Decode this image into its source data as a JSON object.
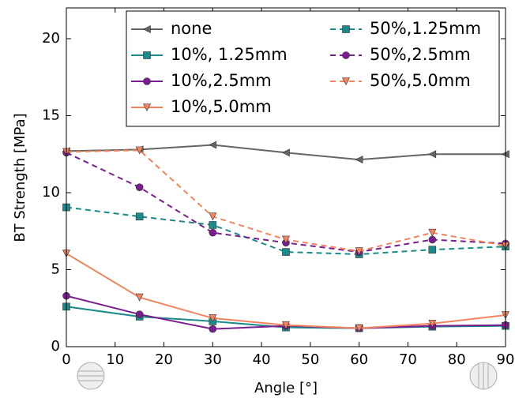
{
  "chart_data": {
    "type": "line",
    "x_label": "Angle [°]",
    "y_label": "BT Strength [MPa]",
    "x": [
      0,
      15,
      30,
      45,
      60,
      75,
      90
    ],
    "xlim": [
      0,
      90
    ],
    "xticks": [
      0,
      10,
      20,
      30,
      40,
      50,
      60,
      70,
      80,
      90
    ],
    "ylim": [
      0,
      22
    ],
    "yticks": [
      0,
      5,
      10,
      15,
      20
    ],
    "legend": "upper center",
    "series": [
      {
        "name": "none",
        "color": "#666666",
        "linestyle": "solid",
        "marker": "triangle-left",
        "values": [
          12.7,
          12.8,
          13.1,
          12.6,
          12.15,
          12.5,
          12.5
        ]
      },
      {
        "name": "10%, 1.25mm",
        "color": "#1a8a8a",
        "linestyle": "solid",
        "marker": "square",
        "values": [
          2.6,
          1.95,
          1.65,
          1.25,
          1.2,
          1.3,
          1.35
        ]
      },
      {
        "name": "10%,2.5mm",
        "color": "#7b1d8f",
        "linestyle": "solid",
        "marker": "circle",
        "values": [
          3.3,
          2.1,
          1.15,
          1.35,
          1.2,
          1.35,
          1.4
        ]
      },
      {
        "name": "10%,5.0mm",
        "color": "#f4845f",
        "linestyle": "solid",
        "marker": "triangle-down",
        "values": [
          6.05,
          3.2,
          1.85,
          1.4,
          1.2,
          1.5,
          2.05
        ]
      },
      {
        "name": "50%,1.25mm",
        "color": "#1a8a8a",
        "linestyle": "dashed",
        "marker": "square",
        "values": [
          9.05,
          8.45,
          7.9,
          6.15,
          6.0,
          6.3,
          6.5
        ]
      },
      {
        "name": "50%,2.5mm",
        "color": "#7b1d8f",
        "linestyle": "dashed",
        "marker": "circle",
        "values": [
          12.6,
          10.35,
          7.4,
          6.75,
          6.15,
          6.95,
          6.7
        ]
      },
      {
        "name": "50%,5.0mm",
        "color": "#f4845f",
        "linestyle": "dashed",
        "marker": "triangle-down",
        "values": [
          12.65,
          12.75,
          8.45,
          6.95,
          6.2,
          7.4,
          6.55
        ]
      }
    ]
  }
}
